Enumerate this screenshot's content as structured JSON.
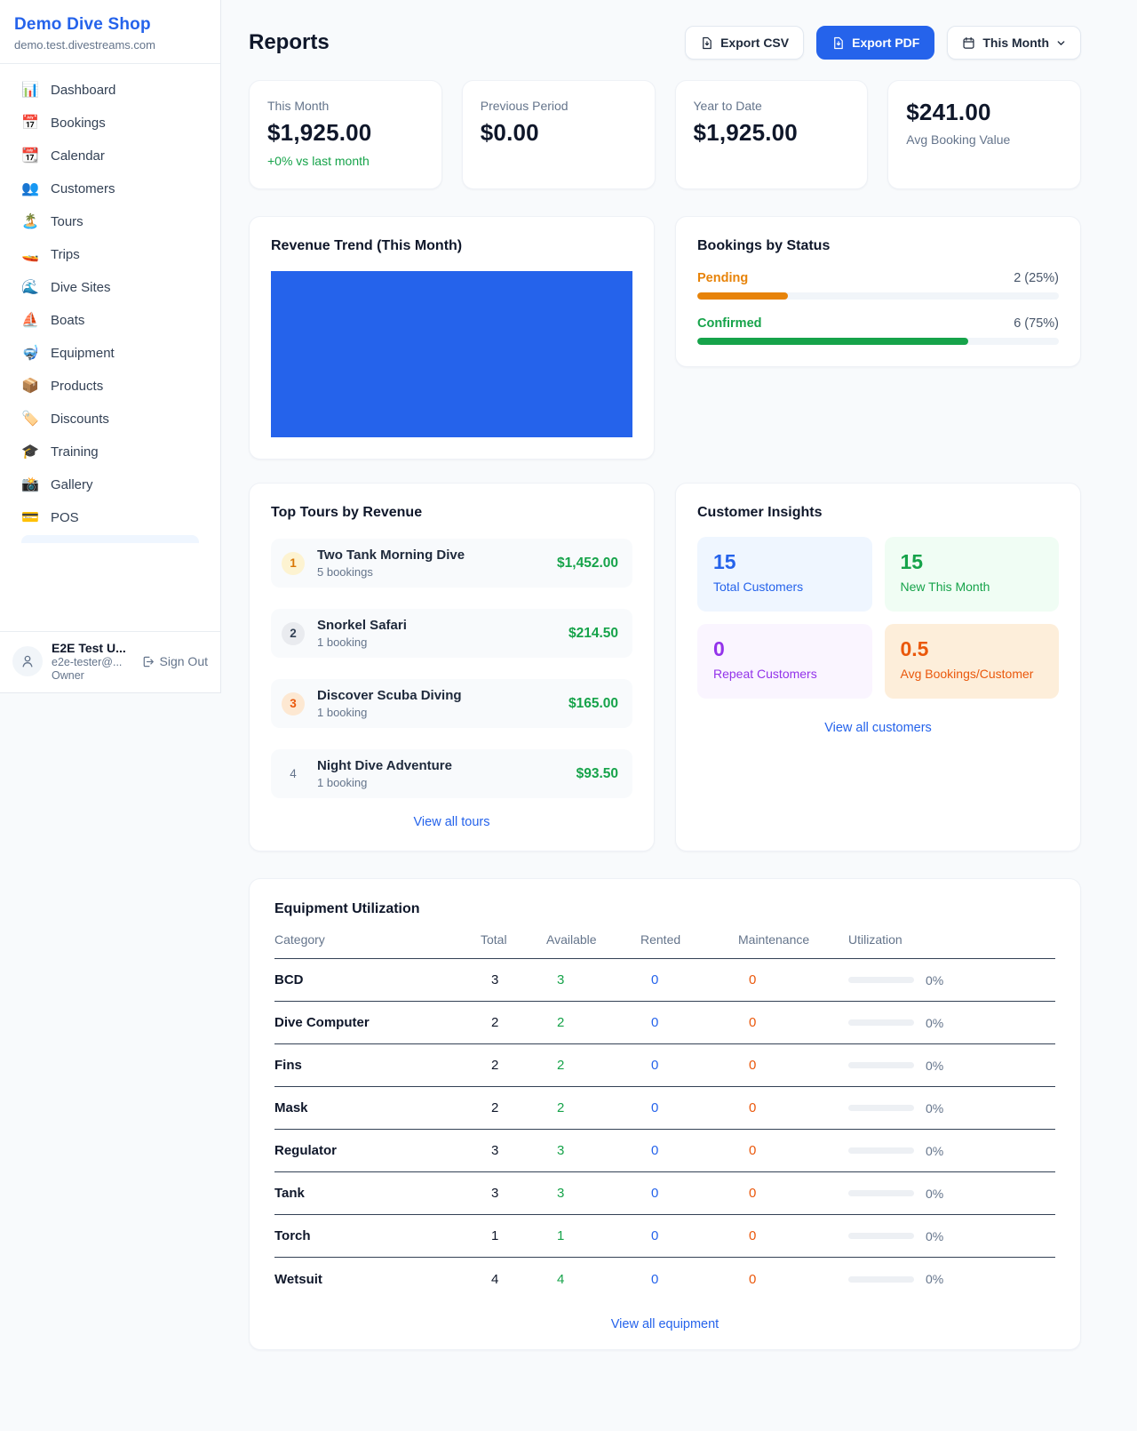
{
  "colors": {
    "accent": "#2563eb",
    "green": "#16a34a",
    "pending_orange": "#e78309",
    "purple": "#9333ea",
    "deep_orange": "#ea580c"
  },
  "sidebar": {
    "shop_name": "Demo Dive Shop",
    "shop_domain": "demo.test.divestreams.com",
    "items": [
      {
        "icon": "bar-chart-icon",
        "glyph": "📊",
        "label": "Dashboard"
      },
      {
        "icon": "calendar-date-icon",
        "glyph": "📅",
        "label": "Bookings"
      },
      {
        "icon": "tear-calendar-icon",
        "glyph": "📆",
        "label": "Calendar"
      },
      {
        "icon": "people-icon",
        "glyph": "👥",
        "label": "Customers"
      },
      {
        "icon": "island-icon",
        "glyph": "🏝️",
        "label": "Tours"
      },
      {
        "icon": "speedboat-icon",
        "glyph": "🚤",
        "label": "Trips"
      },
      {
        "icon": "wave-icon",
        "glyph": "🌊",
        "label": "Dive Sites"
      },
      {
        "icon": "sailboat-icon",
        "glyph": "⛵",
        "label": "Boats"
      },
      {
        "icon": "dive-mask-icon",
        "glyph": "🤿",
        "label": "Equipment"
      },
      {
        "icon": "package-icon",
        "glyph": "📦",
        "label": "Products"
      },
      {
        "icon": "tag-icon",
        "glyph": "🏷️",
        "label": "Discounts"
      },
      {
        "icon": "grad-cap-icon",
        "glyph": "🎓",
        "label": "Training"
      },
      {
        "icon": "camera-icon",
        "glyph": "📸",
        "label": "Gallery"
      },
      {
        "icon": "credit-card-icon",
        "glyph": "💳",
        "label": "POS"
      }
    ],
    "user": {
      "name": "E2E Test U...",
      "email": "e2e-tester@...",
      "role": "Owner",
      "sign_out": "Sign Out"
    }
  },
  "header": {
    "title": "Reports",
    "export_csv": "Export CSV",
    "export_pdf": "Export PDF",
    "period_selected": "This Month"
  },
  "stats": {
    "cards": [
      {
        "label": "This Month",
        "value": "$1,925.00",
        "sub": "+0% vs last month"
      },
      {
        "label": "Previous Period",
        "value": "$0.00"
      },
      {
        "label": "Year to Date",
        "value": "$1,925.00"
      },
      {
        "label": "Avg Booking Value",
        "value": "$241.00"
      }
    ]
  },
  "revenue_trend": {
    "title": "Revenue Trend (This Month)"
  },
  "bookings_by_status": {
    "title": "Bookings by Status",
    "items": [
      {
        "label": "Pending",
        "value_text": "2 (25%)",
        "count": 2,
        "pct": 25
      },
      {
        "label": "Confirmed",
        "value_text": "6 (75%)",
        "count": 6,
        "pct": 75
      }
    ]
  },
  "top_tours": {
    "title": "Top Tours by Revenue",
    "rows": [
      {
        "rank": "1",
        "name": "Two Tank Morning Dive",
        "bookings": "5 bookings",
        "revenue": "$1,452.00"
      },
      {
        "rank": "2",
        "name": "Snorkel Safari",
        "bookings": "1 booking",
        "revenue": "$214.50"
      },
      {
        "rank": "3",
        "name": "Discover Scuba Diving",
        "bookings": "1 booking",
        "revenue": "$165.00"
      },
      {
        "rank": "4",
        "name": "Night Dive Adventure",
        "bookings": "1 booking",
        "revenue": "$93.50"
      }
    ],
    "view_all": "View all tours"
  },
  "customer_insights": {
    "title": "Customer Insights",
    "tiles": [
      {
        "value": "15",
        "label": "Total Customers"
      },
      {
        "value": "15",
        "label": "New This Month"
      },
      {
        "value": "0",
        "label": "Repeat Customers"
      },
      {
        "value": "0.5",
        "label": "Avg Bookings/Customer"
      }
    ],
    "view_all": "View all customers"
  },
  "equipment": {
    "title": "Equipment Utilization",
    "columns": [
      "Category",
      "Total",
      "Available",
      "Rented",
      "Maintenance",
      "Utilization"
    ],
    "rows": [
      {
        "category": "BCD",
        "total": "3",
        "available": "3",
        "rented": "0",
        "maintenance": "0",
        "utilization": "0%",
        "util_pct": 0
      },
      {
        "category": "Dive Computer",
        "total": "2",
        "available": "2",
        "rented": "0",
        "maintenance": "0",
        "utilization": "0%",
        "util_pct": 0
      },
      {
        "category": "Fins",
        "total": "2",
        "available": "2",
        "rented": "0",
        "maintenance": "0",
        "utilization": "0%",
        "util_pct": 0
      },
      {
        "category": "Mask",
        "total": "2",
        "available": "2",
        "rented": "0",
        "maintenance": "0",
        "utilization": "0%",
        "util_pct": 0
      },
      {
        "category": "Regulator",
        "total": "3",
        "available": "3",
        "rented": "0",
        "maintenance": "0",
        "utilization": "0%",
        "util_pct": 0
      },
      {
        "category": "Tank",
        "total": "3",
        "available": "3",
        "rented": "0",
        "maintenance": "0",
        "utilization": "0%",
        "util_pct": 0
      },
      {
        "category": "Torch",
        "total": "1",
        "available": "1",
        "rented": "0",
        "maintenance": "0",
        "utilization": "0%",
        "util_pct": 0
      },
      {
        "category": "Wetsuit",
        "total": "4",
        "available": "4",
        "rented": "0",
        "maintenance": "0",
        "utilization": "0%",
        "util_pct": 0
      }
    ],
    "view_all": "View all equipment"
  }
}
